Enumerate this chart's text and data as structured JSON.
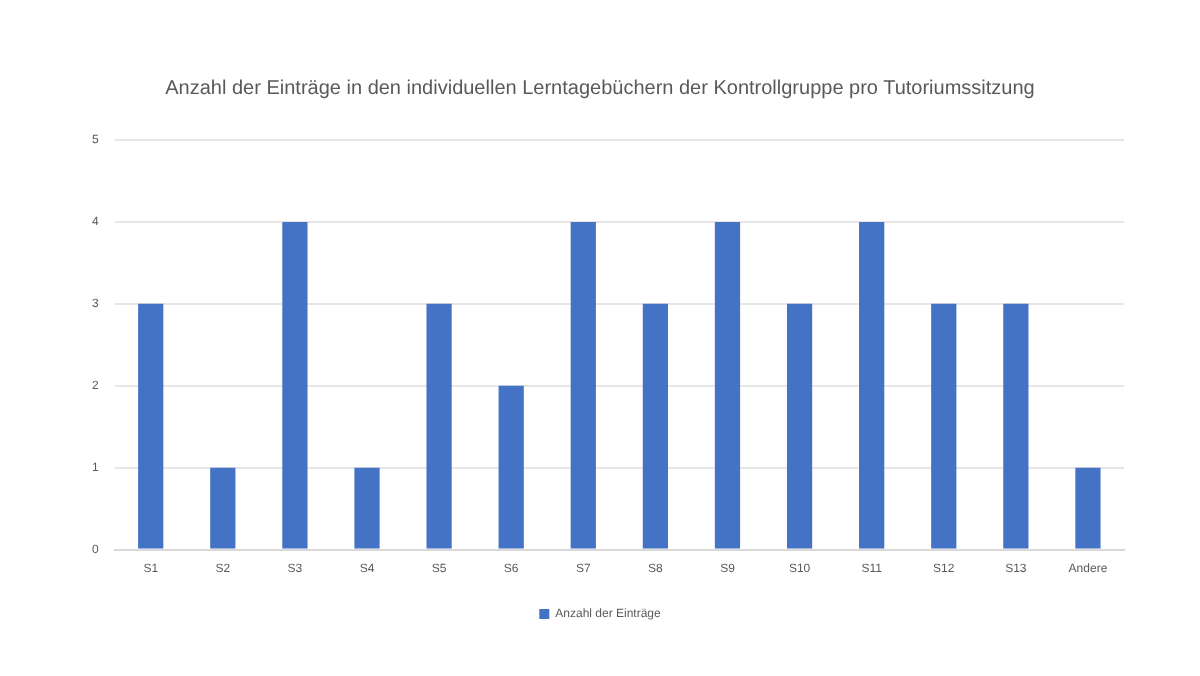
{
  "chart_data": {
    "type": "bar",
    "title": "Anzahl der Einträge in den individuellen Lerntagebüchern der Kontrollgruppe pro Tutoriumssitzung",
    "categories": [
      "S1",
      "S2",
      "S3",
      "S4",
      "S5",
      "S6",
      "S7",
      "S8",
      "S9",
      "S10",
      "S11",
      "S12",
      "S13",
      "Andere"
    ],
    "series": [
      {
        "name": "Anzahl der Einträge",
        "color": "#4472c4",
        "values": [
          3,
          1,
          4,
          1,
          3,
          2,
          4,
          3,
          4,
          3,
          4,
          3,
          3,
          1
        ]
      }
    ],
    "ylim": [
      0,
      5
    ],
    "yticks": [
      0,
      1,
      2,
      3,
      4,
      5
    ],
    "grid": "y",
    "legend": "bottom"
  }
}
